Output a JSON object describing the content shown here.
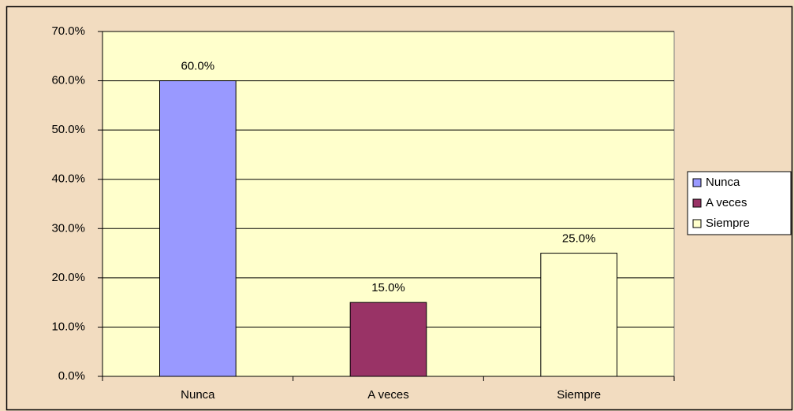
{
  "chart_data": {
    "type": "bar",
    "categories": [
      "Nunca",
      "A veces",
      "Siempre"
    ],
    "values": [
      60,
      15,
      25
    ],
    "value_labels": [
      "60.0%",
      "15.0%",
      "25.0%"
    ],
    "colors": [
      "#9999ff",
      "#993366",
      "#ffffcc"
    ],
    "ylim": [
      0,
      70
    ],
    "yticks": [
      {
        "value": 0,
        "label": "0.0%"
      },
      {
        "value": 10,
        "label": "10.0%"
      },
      {
        "value": 20,
        "label": "20.0%"
      },
      {
        "value": 30,
        "label": "30.0%"
      },
      {
        "value": 40,
        "label": "40.0%"
      },
      {
        "value": 50,
        "label": "50.0%"
      },
      {
        "value": 60,
        "label": "60.0%"
      },
      {
        "value": 70,
        "label": "70.0%"
      }
    ],
    "grid": true,
    "legend": "right"
  }
}
